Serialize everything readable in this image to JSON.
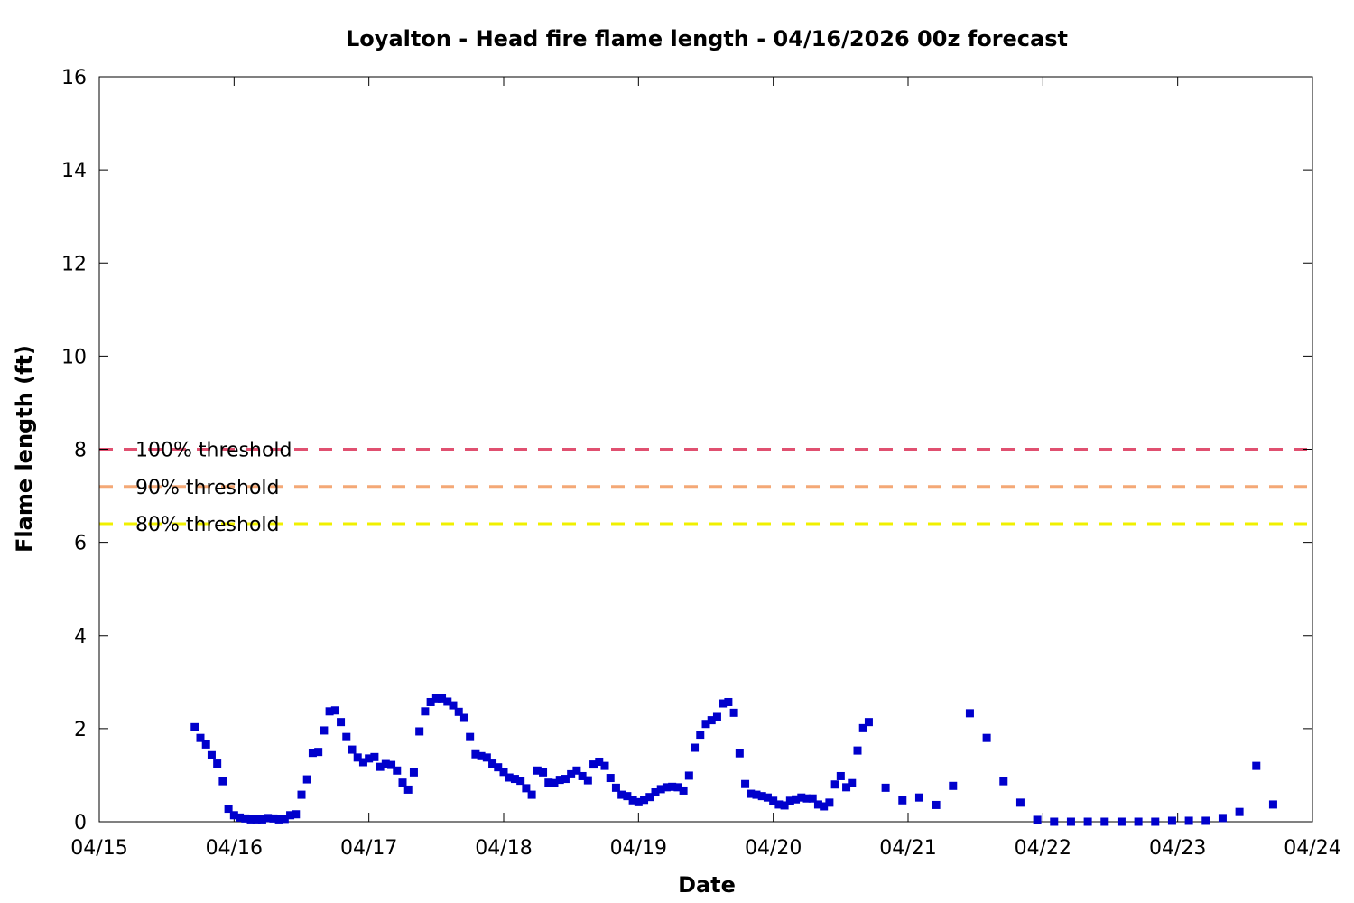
{
  "chart_data": {
    "type": "scatter",
    "title": "Loyalton - Head fire flame length - 04/16/2026 00z forecast",
    "xlabel": "Date",
    "ylabel": "Flame length (ft)",
    "xlim": [
      "2026-04-15T00:00",
      "2026-04-24T00:00"
    ],
    "ylim": [
      0,
      16
    ],
    "x_ticks": [
      "04/15",
      "04/16",
      "04/17",
      "04/18",
      "04/19",
      "04/20",
      "04/21",
      "04/22",
      "04/23",
      "04/24"
    ],
    "y_ticks": [
      0,
      2,
      4,
      6,
      8,
      10,
      12,
      14,
      16
    ],
    "grid": false,
    "legend_position": "left",
    "thresholds": [
      {
        "name": "100% threshold",
        "value": 8.0,
        "color": "#e05070"
      },
      {
        "name": "90% threshold",
        "value": 7.2,
        "color": "#f4a876"
      },
      {
        "name": "80% threshold",
        "value": 6.4,
        "color": "#f0f000"
      }
    ],
    "series": [
      {
        "color": "#0000cc",
        "points": [
          [
            "2026-04-15T17:00",
            2.03
          ],
          [
            "2026-04-15T18:00",
            1.8
          ],
          [
            "2026-04-15T19:00",
            1.66
          ],
          [
            "2026-04-15T20:00",
            1.43
          ],
          [
            "2026-04-15T21:00",
            1.25
          ],
          [
            "2026-04-15T22:00",
            0.87
          ],
          [
            "2026-04-15T23:00",
            0.28
          ],
          [
            "2026-04-16T00:00",
            0.14
          ],
          [
            "2026-04-16T01:00",
            0.09
          ],
          [
            "2026-04-16T02:00",
            0.07
          ],
          [
            "2026-04-16T03:00",
            0.05
          ],
          [
            "2026-04-16T04:00",
            0.05
          ],
          [
            "2026-04-16T05:00",
            0.05
          ],
          [
            "2026-04-16T06:00",
            0.08
          ],
          [
            "2026-04-16T07:00",
            0.07
          ],
          [
            "2026-04-16T08:00",
            0.05
          ],
          [
            "2026-04-16T09:00",
            0.06
          ],
          [
            "2026-04-16T10:00",
            0.14
          ],
          [
            "2026-04-16T11:00",
            0.16
          ],
          [
            "2026-04-16T12:00",
            0.58
          ],
          [
            "2026-04-16T13:00",
            0.91
          ],
          [
            "2026-04-16T14:00",
            1.48
          ],
          [
            "2026-04-16T15:00",
            1.5
          ],
          [
            "2026-04-16T16:00",
            1.96
          ],
          [
            "2026-04-16T17:00",
            2.37
          ],
          [
            "2026-04-16T18:00",
            2.39
          ],
          [
            "2026-04-16T19:00",
            2.14
          ],
          [
            "2026-04-16T20:00",
            1.82
          ],
          [
            "2026-04-16T21:00",
            1.55
          ],
          [
            "2026-04-16T22:00",
            1.38
          ],
          [
            "2026-04-16T23:00",
            1.28
          ],
          [
            "2026-04-17T00:00",
            1.36
          ],
          [
            "2026-04-17T01:00",
            1.39
          ],
          [
            "2026-04-17T02:00",
            1.18
          ],
          [
            "2026-04-17T03:00",
            1.24
          ],
          [
            "2026-04-17T04:00",
            1.22
          ],
          [
            "2026-04-17T05:00",
            1.1
          ],
          [
            "2026-04-17T06:00",
            0.84
          ],
          [
            "2026-04-17T07:00",
            0.69
          ],
          [
            "2026-04-17T08:00",
            1.06
          ],
          [
            "2026-04-17T09:00",
            1.94
          ],
          [
            "2026-04-17T10:00",
            2.37
          ],
          [
            "2026-04-17T11:00",
            2.57
          ],
          [
            "2026-04-17T12:00",
            2.65
          ],
          [
            "2026-04-17T13:00",
            2.65
          ],
          [
            "2026-04-17T14:00",
            2.58
          ],
          [
            "2026-04-17T15:00",
            2.5
          ],
          [
            "2026-04-17T16:00",
            2.36
          ],
          [
            "2026-04-17T17:00",
            2.23
          ],
          [
            "2026-04-17T18:00",
            1.82
          ],
          [
            "2026-04-17T19:00",
            1.45
          ],
          [
            "2026-04-17T20:00",
            1.41
          ],
          [
            "2026-04-17T21:00",
            1.38
          ],
          [
            "2026-04-17T22:00",
            1.25
          ],
          [
            "2026-04-17T23:00",
            1.17
          ],
          [
            "2026-04-18T00:00",
            1.07
          ],
          [
            "2026-04-18T01:00",
            0.95
          ],
          [
            "2026-04-18T02:00",
            0.92
          ],
          [
            "2026-04-18T03:00",
            0.88
          ],
          [
            "2026-04-18T04:00",
            0.72
          ],
          [
            "2026-04-18T05:00",
            0.58
          ],
          [
            "2026-04-18T06:00",
            1.1
          ],
          [
            "2026-04-18T07:00",
            1.06
          ],
          [
            "2026-04-18T08:00",
            0.84
          ],
          [
            "2026-04-18T09:00",
            0.83
          ],
          [
            "2026-04-18T10:00",
            0.9
          ],
          [
            "2026-04-18T11:00",
            0.92
          ],
          [
            "2026-04-18T12:00",
            1.02
          ],
          [
            "2026-04-18T13:00",
            1.1
          ],
          [
            "2026-04-18T14:00",
            0.98
          ],
          [
            "2026-04-18T15:00",
            0.89
          ],
          [
            "2026-04-18T16:00",
            1.23
          ],
          [
            "2026-04-18T17:00",
            1.29
          ],
          [
            "2026-04-18T18:00",
            1.2
          ],
          [
            "2026-04-18T19:00",
            0.94
          ],
          [
            "2026-04-18T20:00",
            0.73
          ],
          [
            "2026-04-18T21:00",
            0.58
          ],
          [
            "2026-04-18T22:00",
            0.55
          ],
          [
            "2026-04-18T23:00",
            0.46
          ],
          [
            "2026-04-19T00:00",
            0.42
          ],
          [
            "2026-04-19T01:00",
            0.47
          ],
          [
            "2026-04-19T02:00",
            0.53
          ],
          [
            "2026-04-19T03:00",
            0.63
          ],
          [
            "2026-04-19T04:00",
            0.7
          ],
          [
            "2026-04-19T05:00",
            0.74
          ],
          [
            "2026-04-19T06:00",
            0.75
          ],
          [
            "2026-04-19T07:00",
            0.74
          ],
          [
            "2026-04-19T08:00",
            0.67
          ],
          [
            "2026-04-19T09:00",
            0.99
          ],
          [
            "2026-04-19T10:00",
            1.59
          ],
          [
            "2026-04-19T11:00",
            1.87
          ],
          [
            "2026-04-19T12:00",
            2.1
          ],
          [
            "2026-04-19T13:00",
            2.18
          ],
          [
            "2026-04-19T14:00",
            2.25
          ],
          [
            "2026-04-19T15:00",
            2.54
          ],
          [
            "2026-04-19T16:00",
            2.57
          ],
          [
            "2026-04-19T17:00",
            2.34
          ],
          [
            "2026-04-19T18:00",
            1.47
          ],
          [
            "2026-04-19T19:00",
            0.81
          ],
          [
            "2026-04-19T20:00",
            0.6
          ],
          [
            "2026-04-19T21:00",
            0.58
          ],
          [
            "2026-04-19T22:00",
            0.55
          ],
          [
            "2026-04-19T23:00",
            0.52
          ],
          [
            "2026-04-20T00:00",
            0.45
          ],
          [
            "2026-04-20T01:00",
            0.37
          ],
          [
            "2026-04-20T02:00",
            0.35
          ],
          [
            "2026-04-20T03:00",
            0.45
          ],
          [
            "2026-04-20T04:00",
            0.48
          ],
          [
            "2026-04-20T05:00",
            0.52
          ],
          [
            "2026-04-20T06:00",
            0.5
          ],
          [
            "2026-04-20T07:00",
            0.5
          ],
          [
            "2026-04-20T08:00",
            0.37
          ],
          [
            "2026-04-20T09:00",
            0.33
          ],
          [
            "2026-04-20T10:00",
            0.41
          ],
          [
            "2026-04-20T11:00",
            0.8
          ],
          [
            "2026-04-20T12:00",
            0.98
          ],
          [
            "2026-04-20T13:00",
            0.74
          ],
          [
            "2026-04-20T14:00",
            0.83
          ],
          [
            "2026-04-20T15:00",
            1.53
          ],
          [
            "2026-04-20T16:00",
            2.01
          ],
          [
            "2026-04-20T17:00",
            2.14
          ],
          [
            "2026-04-20T20:00",
            0.73
          ],
          [
            "2026-04-20T23:00",
            0.46
          ],
          [
            "2026-04-21T02:00",
            0.52
          ],
          [
            "2026-04-21T05:00",
            0.36
          ],
          [
            "2026-04-21T08:00",
            0.77
          ],
          [
            "2026-04-21T11:00",
            2.33
          ],
          [
            "2026-04-21T14:00",
            1.8
          ],
          [
            "2026-04-21T17:00",
            0.87
          ],
          [
            "2026-04-21T20:00",
            0.41
          ],
          [
            "2026-04-21T23:00",
            0.04
          ],
          [
            "2026-04-22T02:00",
            0.0
          ],
          [
            "2026-04-22T05:00",
            0.0
          ],
          [
            "2026-04-22T08:00",
            0.0
          ],
          [
            "2026-04-22T11:00",
            0.0
          ],
          [
            "2026-04-22T14:00",
            0.0
          ],
          [
            "2026-04-22T17:00",
            0.0
          ],
          [
            "2026-04-22T20:00",
            0.0
          ],
          [
            "2026-04-22T23:00",
            0.02
          ],
          [
            "2026-04-23T02:00",
            0.02
          ],
          [
            "2026-04-23T05:00",
            0.02
          ],
          [
            "2026-04-23T08:00",
            0.08
          ],
          [
            "2026-04-23T11:00",
            0.21
          ],
          [
            "2026-04-23T14:00",
            1.2
          ],
          [
            "2026-04-23T17:00",
            0.37
          ]
        ]
      }
    ]
  }
}
